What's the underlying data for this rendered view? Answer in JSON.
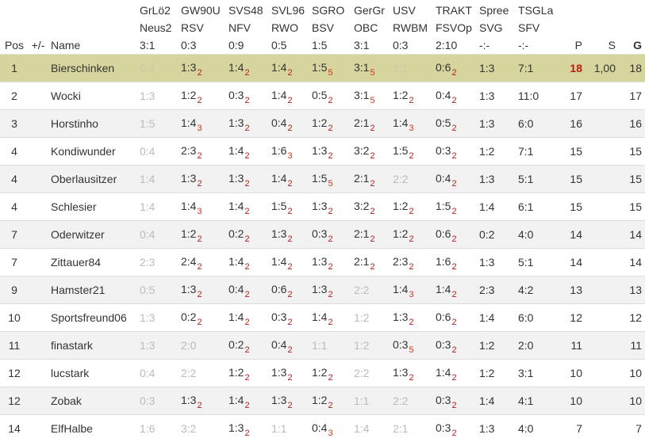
{
  "header": {
    "pos": "Pos",
    "change": "+/-",
    "name": "Name",
    "matches": [
      {
        "team1": "GrLö2",
        "team2": "Neus2",
        "result": "3:1"
      },
      {
        "team1": "GW90U",
        "team2": "RSV",
        "result": "0:3"
      },
      {
        "team1": "SVS48",
        "team2": "NFV",
        "result": "0:9"
      },
      {
        "team1": "SVL96",
        "team2": "RWO",
        "result": "0:5"
      },
      {
        "team1": "SGRO",
        "team2": "BSV",
        "result": "1:5"
      },
      {
        "team1": "GerGr",
        "team2": "OBC",
        "result": "3:1"
      },
      {
        "team1": "USV",
        "team2": "RWBM",
        "result": "0:3"
      },
      {
        "team1": "TRAKT",
        "team2": "FSVOp",
        "result": "2:10"
      },
      {
        "team1": "Spree",
        "team2": "SVG",
        "result": "-:-"
      },
      {
        "team1": "TSGLa",
        "team2": "SFV",
        "result": "-:-"
      }
    ],
    "points": "P",
    "s": "S",
    "g": "G"
  },
  "colors": {
    "highlight_row": "#d6d59e",
    "points_sub": "#b3201c",
    "leader_points": "#b71c0e",
    "dim": "#bbbbbb"
  },
  "rows": [
    {
      "pos": "1",
      "change": "",
      "name": "Bierschinken",
      "highlight": true,
      "tips": [
        {
          "score": "0:4",
          "dim": true
        },
        {
          "score": "1:3",
          "pts": "2"
        },
        {
          "score": "1:4",
          "pts": "2"
        },
        {
          "score": "1:4",
          "pts": "2"
        },
        {
          "score": "1:5",
          "pts": "5"
        },
        {
          "score": "3:1",
          "pts": "5"
        },
        {
          "score": "1:1",
          "dim": true
        },
        {
          "score": "0:6",
          "pts": "2"
        },
        {
          "score": "1:3"
        },
        {
          "score": "7:1"
        }
      ],
      "points": "18",
      "s": "1,00",
      "g": "18",
      "leader": true
    },
    {
      "pos": "2",
      "change": "",
      "name": "Wocki",
      "tips": [
        {
          "score": "1:3",
          "dim": true
        },
        {
          "score": "1:2",
          "pts": "2"
        },
        {
          "score": "0:3",
          "pts": "2"
        },
        {
          "score": "1:4",
          "pts": "2"
        },
        {
          "score": "0:5",
          "pts": "2"
        },
        {
          "score": "3:1",
          "pts": "5"
        },
        {
          "score": "1:2",
          "pts": "2"
        },
        {
          "score": "0:4",
          "pts": "2"
        },
        {
          "score": "1:3"
        },
        {
          "score": "11:0"
        }
      ],
      "points": "17",
      "s": "",
      "g": "17"
    },
    {
      "pos": "3",
      "change": "",
      "name": "Horstinho",
      "tips": [
        {
          "score": "1:5",
          "dim": true
        },
        {
          "score": "1:4",
          "pts": "3"
        },
        {
          "score": "1:3",
          "pts": "2"
        },
        {
          "score": "0:4",
          "pts": "2"
        },
        {
          "score": "1:2",
          "pts": "2"
        },
        {
          "score": "2:1",
          "pts": "2"
        },
        {
          "score": "1:4",
          "pts": "3"
        },
        {
          "score": "0:5",
          "pts": "2"
        },
        {
          "score": "1:3"
        },
        {
          "score": "6:0"
        }
      ],
      "points": "16",
      "s": "",
      "g": "16"
    },
    {
      "pos": "4",
      "change": "",
      "name": "Kondiwunder",
      "tips": [
        {
          "score": "0:4",
          "dim": true
        },
        {
          "score": "2:3",
          "pts": "2"
        },
        {
          "score": "1:4",
          "pts": "2"
        },
        {
          "score": "1:6",
          "pts": "3"
        },
        {
          "score": "1:3",
          "pts": "2"
        },
        {
          "score": "3:2",
          "pts": "2"
        },
        {
          "score": "1:5",
          "pts": "2"
        },
        {
          "score": "0:3",
          "pts": "2"
        },
        {
          "score": "1:2"
        },
        {
          "score": "7:1"
        }
      ],
      "points": "15",
      "s": "",
      "g": "15"
    },
    {
      "pos": "4",
      "change": "",
      "name": "Oberlausitzer",
      "tips": [
        {
          "score": "1:4",
          "dim": true
        },
        {
          "score": "1:3",
          "pts": "2"
        },
        {
          "score": "1:3",
          "pts": "2"
        },
        {
          "score": "1:4",
          "pts": "2"
        },
        {
          "score": "1:5",
          "pts": "5"
        },
        {
          "score": "2:1",
          "pts": "2"
        },
        {
          "score": "2:2",
          "dim": true
        },
        {
          "score": "0:4",
          "pts": "2"
        },
        {
          "score": "1:3"
        },
        {
          "score": "5:1"
        }
      ],
      "points": "15",
      "s": "",
      "g": "15"
    },
    {
      "pos": "4",
      "change": "",
      "name": "Schlesier",
      "tips": [
        {
          "score": "1:4",
          "dim": true
        },
        {
          "score": "1:4",
          "pts": "3"
        },
        {
          "score": "1:4",
          "pts": "2"
        },
        {
          "score": "1:5",
          "pts": "2"
        },
        {
          "score": "1:3",
          "pts": "2"
        },
        {
          "score": "3:2",
          "pts": "2"
        },
        {
          "score": "1:2",
          "pts": "2"
        },
        {
          "score": "1:5",
          "pts": "2"
        },
        {
          "score": "1:4"
        },
        {
          "score": "6:1"
        }
      ],
      "points": "15",
      "s": "",
      "g": "15"
    },
    {
      "pos": "7",
      "change": "",
      "name": "Oderwitzer",
      "tips": [
        {
          "score": "0:4",
          "dim": true
        },
        {
          "score": "1:2",
          "pts": "2"
        },
        {
          "score": "0:2",
          "pts": "2"
        },
        {
          "score": "1:3",
          "pts": "2"
        },
        {
          "score": "0:3",
          "pts": "2"
        },
        {
          "score": "2:1",
          "pts": "2"
        },
        {
          "score": "1:2",
          "pts": "2"
        },
        {
          "score": "0:6",
          "pts": "2"
        },
        {
          "score": "0:2"
        },
        {
          "score": "4:0"
        }
      ],
      "points": "14",
      "s": "",
      "g": "14"
    },
    {
      "pos": "7",
      "change": "",
      "name": "Zittauer84",
      "tips": [
        {
          "score": "2:3",
          "dim": true
        },
        {
          "score": "2:4",
          "pts": "2"
        },
        {
          "score": "1:4",
          "pts": "2"
        },
        {
          "score": "1:4",
          "pts": "2"
        },
        {
          "score": "1:3",
          "pts": "2"
        },
        {
          "score": "2:1",
          "pts": "2"
        },
        {
          "score": "2:3",
          "pts": "2"
        },
        {
          "score": "1:6",
          "pts": "2"
        },
        {
          "score": "1:3"
        },
        {
          "score": "5:1"
        }
      ],
      "points": "14",
      "s": "",
      "g": "14"
    },
    {
      "pos": "9",
      "change": "",
      "name": "Hamster21",
      "tips": [
        {
          "score": "0:5",
          "dim": true
        },
        {
          "score": "1:3",
          "pts": "2"
        },
        {
          "score": "0:4",
          "pts": "2"
        },
        {
          "score": "0:6",
          "pts": "2"
        },
        {
          "score": "1:3",
          "pts": "2"
        },
        {
          "score": "2:2",
          "dim": true
        },
        {
          "score": "1:4",
          "pts": "3"
        },
        {
          "score": "1:4",
          "pts": "2"
        },
        {
          "score": "2:3"
        },
        {
          "score": "4:2"
        }
      ],
      "points": "13",
      "s": "",
      "g": "13"
    },
    {
      "pos": "10",
      "change": "",
      "name": "Sportsfreund06",
      "tips": [
        {
          "score": "1:3",
          "dim": true
        },
        {
          "score": "0:2",
          "pts": "2"
        },
        {
          "score": "1:4",
          "pts": "2"
        },
        {
          "score": "0:3",
          "pts": "2"
        },
        {
          "score": "1:4",
          "pts": "2"
        },
        {
          "score": "1:2",
          "dim": true
        },
        {
          "score": "1:3",
          "pts": "2"
        },
        {
          "score": "0:6",
          "pts": "2"
        },
        {
          "score": "1:4"
        },
        {
          "score": "6:0"
        }
      ],
      "points": "12",
      "s": "",
      "g": "12"
    },
    {
      "pos": "11",
      "change": "",
      "name": "finastark",
      "tips": [
        {
          "score": "1:3",
          "dim": true
        },
        {
          "score": "2:0",
          "dim": true
        },
        {
          "score": "0:2",
          "pts": "2"
        },
        {
          "score": "0:4",
          "pts": "2"
        },
        {
          "score": "1:1",
          "dim": true
        },
        {
          "score": "1:2",
          "dim": true
        },
        {
          "score": "0:3",
          "pts": "5"
        },
        {
          "score": "0:3",
          "pts": "2"
        },
        {
          "score": "1:2"
        },
        {
          "score": "2:0"
        }
      ],
      "points": "11",
      "s": "",
      "g": "11"
    },
    {
      "pos": "12",
      "change": "",
      "name": "lucstark",
      "tips": [
        {
          "score": "0:4",
          "dim": true
        },
        {
          "score": "2:2",
          "dim": true
        },
        {
          "score": "1:2",
          "pts": "2"
        },
        {
          "score": "1:3",
          "pts": "2"
        },
        {
          "score": "1:2",
          "pts": "2"
        },
        {
          "score": "2:2",
          "dim": true
        },
        {
          "score": "1:3",
          "pts": "2"
        },
        {
          "score": "1:4",
          "pts": "2"
        },
        {
          "score": "1:2"
        },
        {
          "score": "3:1"
        }
      ],
      "points": "10",
      "s": "",
      "g": "10"
    },
    {
      "pos": "12",
      "change": "",
      "name": "Zobak",
      "tips": [
        {
          "score": "0:3",
          "dim": true
        },
        {
          "score": "1:3",
          "pts": "2"
        },
        {
          "score": "1:4",
          "pts": "2"
        },
        {
          "score": "1:3",
          "pts": "2"
        },
        {
          "score": "1:2",
          "pts": "2"
        },
        {
          "score": "1:1",
          "dim": true
        },
        {
          "score": "2:2",
          "dim": true
        },
        {
          "score": "0:3",
          "pts": "2"
        },
        {
          "score": "1:4"
        },
        {
          "score": "4:1"
        }
      ],
      "points": "10",
      "s": "",
      "g": "10"
    },
    {
      "pos": "14",
      "change": "",
      "name": "ElfHalbe",
      "tips": [
        {
          "score": "1:6",
          "dim": true
        },
        {
          "score": "3:2",
          "dim": true
        },
        {
          "score": "1:3",
          "pts": "2"
        },
        {
          "score": "1:1",
          "dim": true
        },
        {
          "score": "0:4",
          "pts": "3"
        },
        {
          "score": "1:4",
          "dim": true
        },
        {
          "score": "2:1",
          "dim": true
        },
        {
          "score": "0:3",
          "pts": "2"
        },
        {
          "score": "1:3"
        },
        {
          "score": "4:0"
        }
      ],
      "points": "7",
      "s": "",
      "g": "7"
    }
  ]
}
